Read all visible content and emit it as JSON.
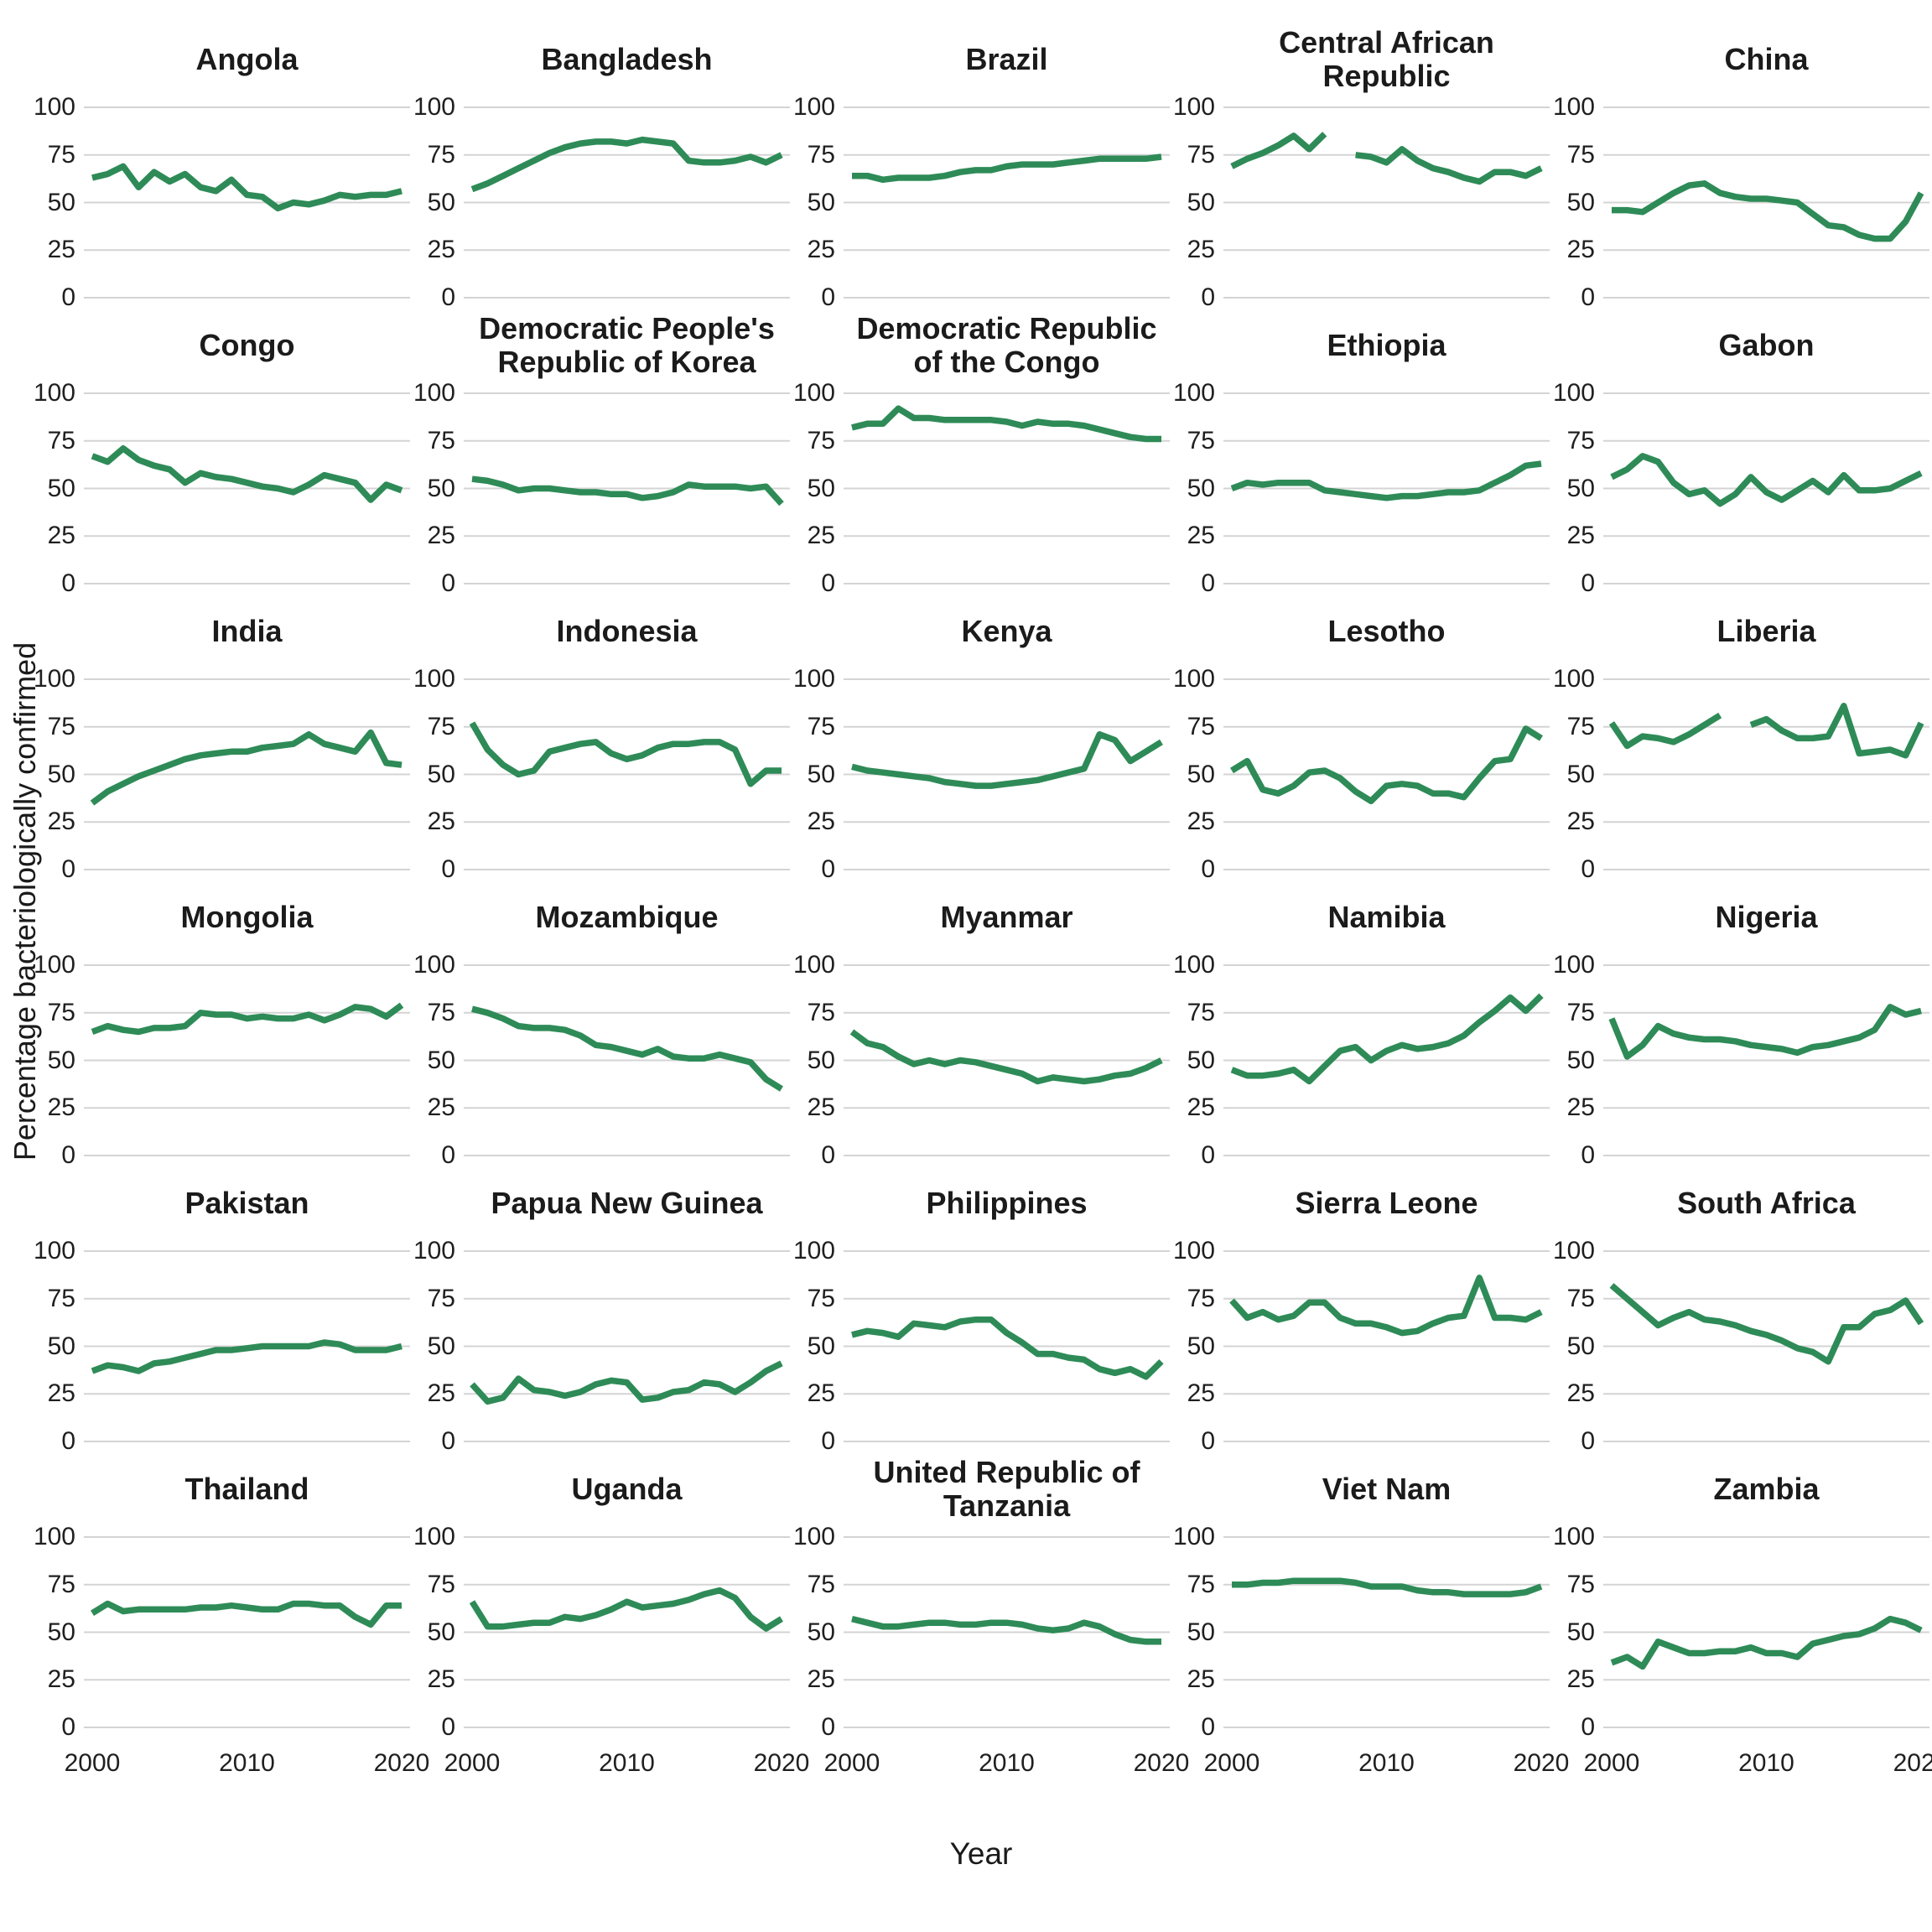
{
  "figure": {
    "y_axis_label": "Percentage bacteriologically confirmed",
    "x_axis_label": "Year",
    "line_color": "#2e8b57",
    "grid_color": "#d4d4d4"
  },
  "chart_data": {
    "type": "line",
    "title": "",
    "x_years": [
      2000,
      2001,
      2002,
      2003,
      2004,
      2005,
      2006,
      2007,
      2008,
      2009,
      2010,
      2011,
      2012,
      2013,
      2014,
      2015,
      2016,
      2017,
      2018,
      2019,
      2020
    ],
    "x_ticks": [
      2000,
      2010,
      2020
    ],
    "y_ticks": [
      100,
      75,
      50,
      25,
      0
    ],
    "ylim": [
      0,
      100
    ],
    "xlabel": "Year",
    "ylabel": "Percentage bacteriologically confirmed",
    "legend": "none",
    "grid": "horizontal-only",
    "series": [
      {
        "name": "Angola",
        "values": [
          63,
          65,
          69,
          58,
          66,
          61,
          65,
          58,
          56,
          62,
          54,
          53,
          47,
          50,
          49,
          51,
          54,
          53,
          54,
          54,
          56
        ]
      },
      {
        "name": "Bangladesh",
        "values": [
          57,
          60,
          64,
          68,
          72,
          76,
          79,
          81,
          82,
          82,
          81,
          83,
          82,
          81,
          72,
          71,
          71,
          72,
          74,
          71,
          75
        ]
      },
      {
        "name": "Brazil",
        "values": [
          64,
          64,
          62,
          63,
          63,
          63,
          64,
          66,
          67,
          67,
          69,
          70,
          70,
          70,
          71,
          72,
          73,
          73,
          73,
          73,
          74
        ]
      },
      {
        "name": "Central African Republic",
        "values": [
          69,
          73,
          76,
          80,
          85,
          78,
          86,
          null,
          75,
          74,
          71,
          78,
          72,
          68,
          66,
          63,
          61,
          66,
          66,
          64,
          68
        ]
      },
      {
        "name": "China",
        "values": [
          46,
          46,
          45,
          50,
          55,
          59,
          60,
          55,
          53,
          52,
          52,
          51,
          50,
          44,
          38,
          37,
          33,
          31,
          31,
          40,
          55
        ]
      },
      {
        "name": "Congo",
        "values": [
          67,
          64,
          71,
          65,
          62,
          60,
          53,
          58,
          56,
          55,
          53,
          51,
          50,
          48,
          52,
          57,
          55,
          53,
          44,
          52,
          49
        ]
      },
      {
        "name": "Democratic People's Republic of Korea",
        "values": [
          55,
          54,
          52,
          49,
          50,
          50,
          49,
          48,
          48,
          47,
          47,
          45,
          46,
          48,
          52,
          51,
          51,
          51,
          50,
          51,
          42
        ]
      },
      {
        "name": "Democratic Republic of the Congo",
        "values": [
          82,
          84,
          84,
          92,
          87,
          87,
          86,
          86,
          86,
          86,
          85,
          83,
          85,
          84,
          84,
          83,
          81,
          79,
          77,
          76,
          76
        ]
      },
      {
        "name": "Ethiopia",
        "values": [
          50,
          53,
          52,
          53,
          53,
          53,
          49,
          48,
          47,
          46,
          45,
          46,
          46,
          47,
          48,
          48,
          49,
          53,
          57,
          62,
          63
        ]
      },
      {
        "name": "Gabon",
        "values": [
          56,
          60,
          67,
          64,
          53,
          47,
          49,
          42,
          47,
          56,
          48,
          44,
          49,
          54,
          48,
          57,
          49,
          49,
          50,
          54,
          58
        ]
      },
      {
        "name": "India",
        "values": [
          35,
          41,
          45,
          49,
          52,
          55,
          58,
          60,
          61,
          62,
          62,
          64,
          65,
          66,
          71,
          66,
          64,
          62,
          72,
          56,
          55
        ]
      },
      {
        "name": "Indonesia",
        "values": [
          77,
          63,
          55,
          50,
          52,
          62,
          64,
          66,
          67,
          61,
          58,
          60,
          64,
          66,
          66,
          67,
          67,
          63,
          45,
          52,
          52
        ]
      },
      {
        "name": "Kenya",
        "values": [
          54,
          52,
          51,
          50,
          49,
          48,
          46,
          45,
          44,
          44,
          45,
          46,
          47,
          49,
          51,
          53,
          71,
          68,
          57,
          62,
          67
        ]
      },
      {
        "name": "Lesotho",
        "values": [
          52,
          57,
          42,
          40,
          44,
          51,
          52,
          48,
          41,
          36,
          44,
          45,
          44,
          40,
          40,
          38,
          48,
          57,
          58,
          74,
          69
        ]
      },
      {
        "name": "Liberia",
        "values": [
          77,
          65,
          70,
          69,
          67,
          71,
          76,
          81,
          null,
          76,
          79,
          73,
          69,
          69,
          70,
          86,
          61,
          62,
          63,
          60,
          77
        ]
      },
      {
        "name": "Mongolia",
        "values": [
          65,
          68,
          66,
          65,
          67,
          67,
          68,
          75,
          74,
          74,
          72,
          73,
          72,
          72,
          74,
          71,
          74,
          78,
          77,
          73,
          79
        ]
      },
      {
        "name": "Mozambique",
        "values": [
          77,
          75,
          72,
          68,
          67,
          67,
          66,
          63,
          58,
          57,
          55,
          53,
          56,
          52,
          51,
          51,
          53,
          51,
          49,
          40,
          35
        ]
      },
      {
        "name": "Myanmar",
        "values": [
          65,
          59,
          57,
          52,
          48,
          50,
          48,
          50,
          49,
          47,
          45,
          43,
          39,
          41,
          40,
          39,
          40,
          42,
          43,
          46,
          50
        ]
      },
      {
        "name": "Namibia",
        "values": [
          45,
          42,
          42,
          43,
          45,
          39,
          47,
          55,
          57,
          50,
          55,
          58,
          56,
          57,
          59,
          63,
          70,
          76,
          83,
          76,
          84
        ]
      },
      {
        "name": "Nigeria",
        "values": [
          72,
          52,
          58,
          68,
          64,
          62,
          61,
          61,
          60,
          58,
          57,
          56,
          54,
          57,
          58,
          60,
          62,
          66,
          78,
          74,
          76
        ]
      },
      {
        "name": "Pakistan",
        "values": [
          37,
          40,
          39,
          37,
          41,
          42,
          44,
          46,
          48,
          48,
          49,
          50,
          50,
          50,
          50,
          52,
          51,
          48,
          48,
          48,
          50
        ]
      },
      {
        "name": "Papua New Guinea",
        "values": [
          30,
          21,
          23,
          33,
          27,
          26,
          24,
          26,
          30,
          32,
          31,
          22,
          23,
          26,
          27,
          31,
          30,
          26,
          31,
          37,
          41
        ]
      },
      {
        "name": "Philippines",
        "values": [
          56,
          58,
          57,
          55,
          62,
          61,
          60,
          63,
          64,
          64,
          57,
          52,
          46,
          46,
          44,
          43,
          38,
          36,
          38,
          34,
          42
        ]
      },
      {
        "name": "Sierra Leone",
        "values": [
          74,
          65,
          68,
          64,
          66,
          73,
          73,
          65,
          62,
          62,
          60,
          57,
          58,
          62,
          65,
          66,
          86,
          65,
          65,
          64,
          68
        ]
      },
      {
        "name": "South Africa",
        "values": [
          82,
          75,
          68,
          61,
          65,
          68,
          64,
          63,
          61,
          58,
          56,
          53,
          49,
          47,
          42,
          60,
          60,
          67,
          69,
          74,
          62
        ]
      },
      {
        "name": "Thailand",
        "values": [
          60,
          65,
          61,
          62,
          62,
          62,
          62,
          63,
          63,
          64,
          63,
          62,
          62,
          65,
          65,
          64,
          64,
          58,
          54,
          64,
          64
        ]
      },
      {
        "name": "Uganda",
        "values": [
          66,
          53,
          53,
          54,
          55,
          55,
          58,
          57,
          59,
          62,
          66,
          63,
          64,
          65,
          67,
          70,
          72,
          68,
          58,
          52,
          57
        ]
      },
      {
        "name": "United Republic of Tanzania",
        "values": [
          57,
          55,
          53,
          53,
          54,
          55,
          55,
          54,
          54,
          55,
          55,
          54,
          52,
          51,
          52,
          55,
          53,
          49,
          46,
          45,
          45
        ]
      },
      {
        "name": "Viet Nam",
        "values": [
          75,
          75,
          76,
          76,
          77,
          77,
          77,
          77,
          76,
          74,
          74,
          74,
          72,
          71,
          71,
          70,
          70,
          70,
          70,
          71,
          74
        ]
      },
      {
        "name": "Zambia",
        "values": [
          34,
          37,
          32,
          45,
          42,
          39,
          39,
          40,
          40,
          42,
          39,
          39,
          37,
          44,
          46,
          48,
          49,
          52,
          57,
          55,
          51
        ]
      }
    ]
  }
}
